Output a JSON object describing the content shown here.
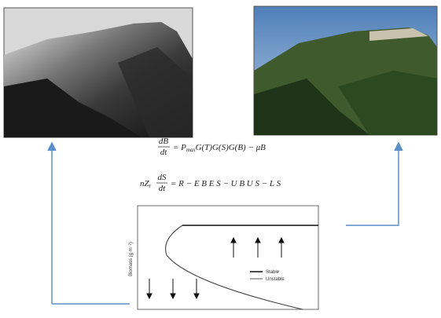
{
  "equation_1": {
    "numerator": "dB",
    "denominator": "dt",
    "rhs_start": "= P",
    "rhs_sub": "max",
    "rhs_end": "G(T)G(S)G(B) − μB"
  },
  "equation_2": {
    "prefix": "nZ",
    "prefix_sub": "r",
    "numerator": "dS",
    "denominator": "dt",
    "rhs": "= R − E B E S − U B U S − L S"
  },
  "chart": {
    "y_label": "Biomass (g m⁻²)",
    "legend": [
      "Stable",
      "Unstable"
    ]
  }
}
